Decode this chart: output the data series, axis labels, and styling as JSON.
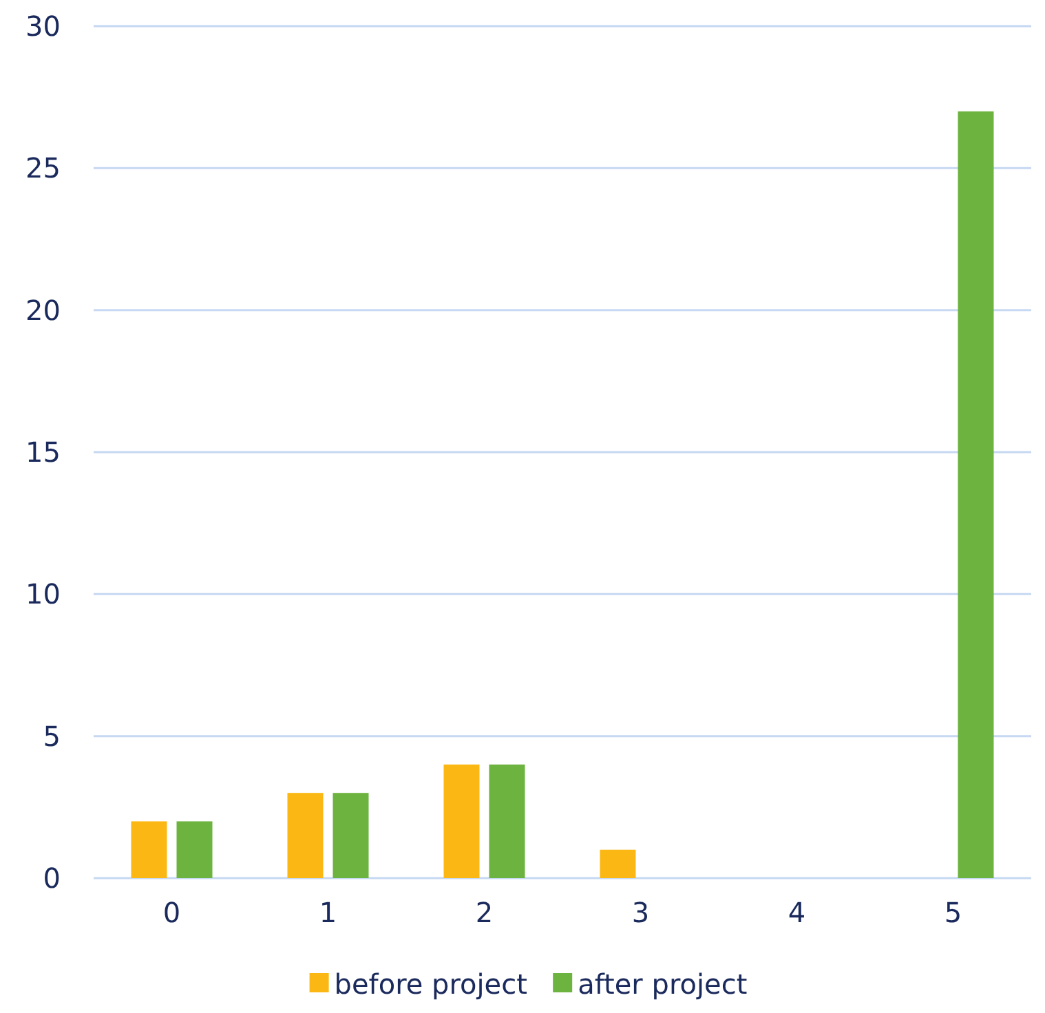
{
  "chart_data": {
    "type": "bar",
    "categories": [
      "0",
      "1",
      "2",
      "3",
      "4",
      "5"
    ],
    "series": [
      {
        "name": "before project",
        "color": "#fbb814",
        "values": [
          2,
          3,
          4,
          1,
          0,
          0
        ]
      },
      {
        "name": "after project",
        "color": "#6db33f",
        "values": [
          2,
          3,
          4,
          0,
          0,
          27
        ]
      }
    ],
    "ylim": [
      0,
      30
    ],
    "yticks": [
      0,
      5,
      10,
      15,
      20,
      25,
      30
    ],
    "grid": "y",
    "legend": "bottom"
  }
}
